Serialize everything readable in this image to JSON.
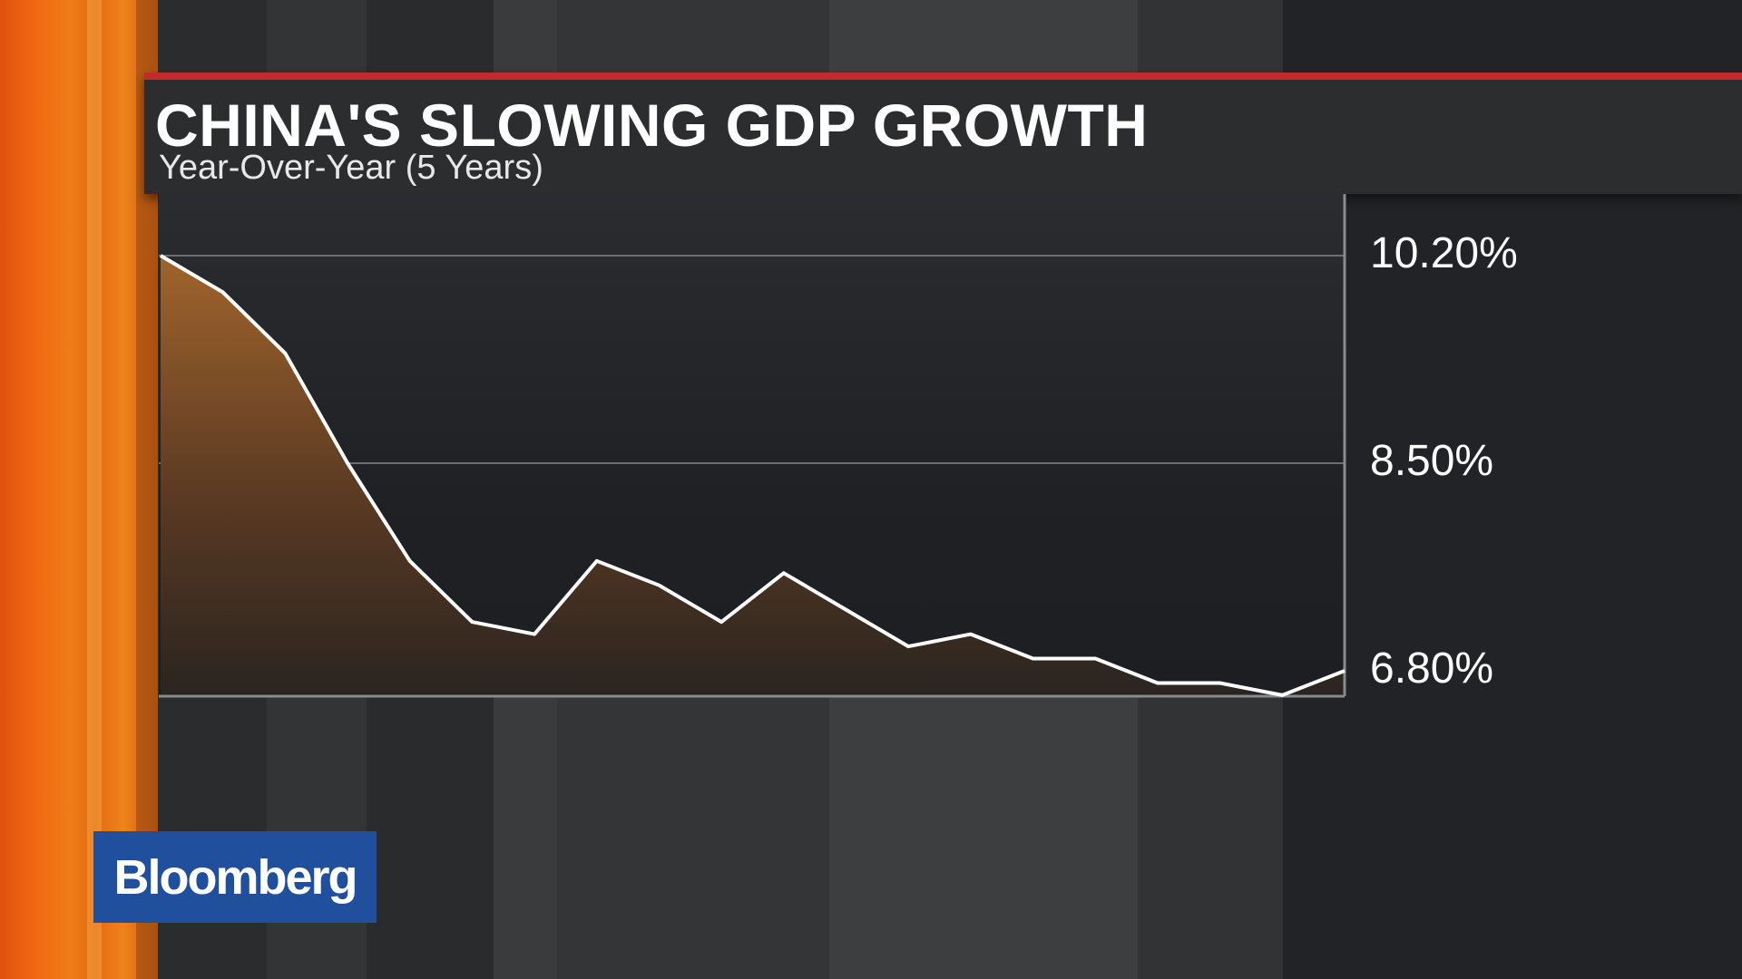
{
  "header": {
    "title": "CHINA'S SLOWING GDP GROWTH",
    "subtitle": "Year-Over-Year (5 Years)"
  },
  "logo": {
    "text": "Bloomberg"
  },
  "colors": {
    "accent_red": "#c32b2b",
    "line": "#ffffff",
    "area_top": "#a0642c",
    "area_bottom": "#2a2420",
    "logo_bg": "#1f4f9d",
    "orange": "#f26a12"
  },
  "chart_data": {
    "type": "area",
    "title": "CHINA'S SLOWING GDP GROWTH",
    "subtitle": "Year-Over-Year (5 Years)",
    "y_axis_position": "right",
    "y_ticks": [
      10.2,
      8.5,
      6.8
    ],
    "y_tick_labels": [
      "10.20%",
      "8.50%",
      "6.80%"
    ],
    "ylim": [
      6.6,
      10.7
    ],
    "grid": true,
    "series": [
      {
        "values": [
          10.2,
          9.9,
          9.4,
          8.5,
          7.7,
          7.2,
          7.1,
          7.7,
          7.5,
          7.2,
          7.6,
          7.3,
          7.0,
          7.1,
          6.9,
          6.9,
          6.7,
          6.7,
          6.6,
          6.8
        ]
      }
    ]
  }
}
